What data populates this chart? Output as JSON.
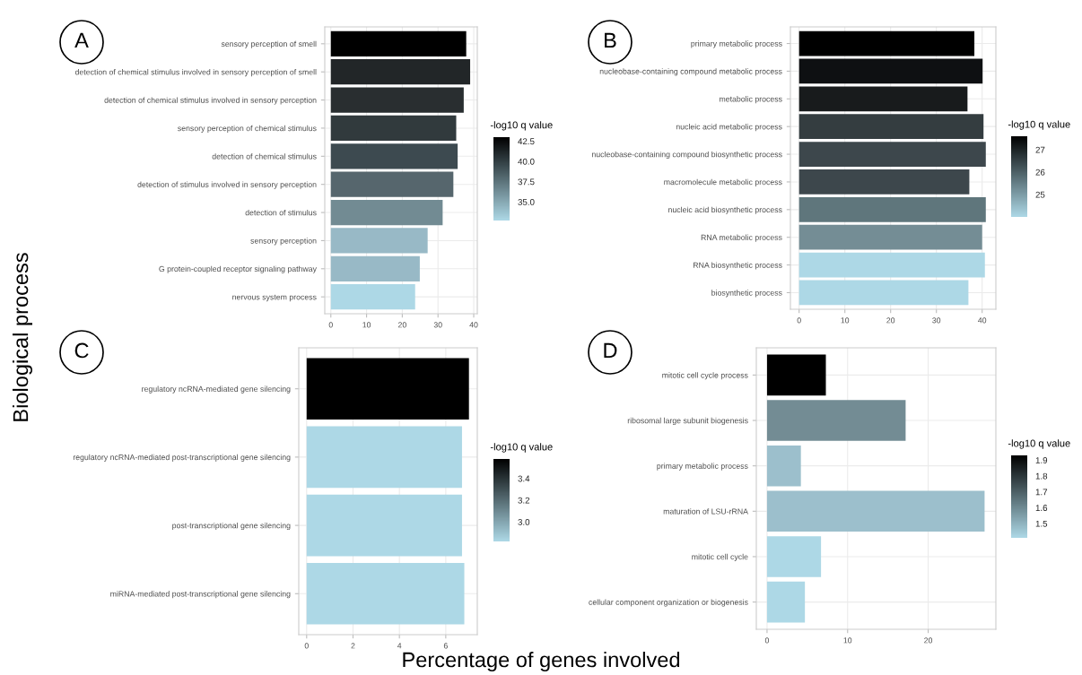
{
  "chart_data": [
    {
      "type": "bar",
      "orientation": "horizontal",
      "title": "A",
      "ylabel": "Biological process",
      "clabel": "-log10 q value",
      "categories": [
        "sensory perception of smell",
        "detection of chemical stimulus involved in sensory perception of smell",
        "detection of chemical stimulus involved in sensory perception",
        "sensory perception of chemical stimulus",
        "detection of chemical stimulus",
        "detection of stimulus involved in sensory perception",
        "detection of stimulus",
        "sensory perception",
        "G protein-coupled receptor signaling pathway",
        "nervous system process"
      ],
      "values": [
        37.9,
        39.0,
        37.2,
        35.1,
        35.5,
        34.3,
        31.3,
        27.1,
        24.9,
        23.6
      ],
      "colors": [
        "#000000",
        "#222628",
        "#292e30",
        "#313a3d",
        "#3d4a50",
        "#56666d",
        "#728b93",
        "#98b9c6",
        "#98b9c6",
        "#add8e6"
      ],
      "xlim": [
        -1.7,
        41.0
      ],
      "xticks": [
        0,
        10,
        20,
        30,
        40
      ],
      "clim": [
        32.7,
        43.0
      ],
      "cticks": [
        {
          "value": 35,
          "label": "35.0"
        },
        37.5,
        {
          "value": 40,
          "label": "40.0"
        },
        42.5
      ],
      "grid": true
    },
    {
      "type": "bar",
      "orientation": "horizontal",
      "title": "B",
      "clabel": "-log10 q value",
      "categories": [
        "primary metabolic process",
        "nucleobase-containing compound metabolic process",
        "metabolic process",
        "nucleic acid metabolic process",
        "nucleobase-containing compound biosynthetic process",
        "macromolecule metabolic process",
        "nucleic acid biosynthetic process",
        "RNA metabolic process",
        "RNA biosynthetic process",
        "biosynthetic process"
      ],
      "values": [
        38.3,
        40.1,
        36.8,
        40.3,
        40.8,
        37.2,
        40.8,
        40.0,
        40.6,
        37.0
      ],
      "colors": [
        "#000000",
        "#0e1012",
        "#181b1c",
        "#343d40",
        "#3d474c",
        "#3d474c",
        "#5f767c",
        "#748d95",
        "#add8e6",
        "#add8e6"
      ],
      "xlim": [
        -1.9,
        43.0
      ],
      "xticks": [
        0,
        10,
        20,
        30,
        40
      ],
      "clim": [
        24.0,
        27.6
      ],
      "cticks": [
        25,
        26,
        27
      ],
      "grid": true
    },
    {
      "type": "bar",
      "orientation": "horizontal",
      "title": "C",
      "xlabel": "Percentage of genes involved",
      "clabel": "-log10 q value",
      "categories": [
        "regulatory ncRNA-mediated gene silencing",
        "regulatory ncRNA-mediated post-transcriptional gene silencing",
        "post-transcriptional gene silencing",
        "miRNA-mediated post-transcriptional gene silencing"
      ],
      "values": [
        7.0,
        6.7,
        6.7,
        6.8
      ],
      "colors": [
        "#000000",
        "#add8e6",
        "#add8e6",
        "#add8e6"
      ],
      "xlim": [
        -0.34,
        7.36
      ],
      "xticks": [
        0,
        2,
        4,
        6
      ],
      "clim": [
        2.82,
        3.58
      ],
      "cticks": [
        {
          "value": 3.0,
          "label": "3.0"
        },
        {
          "value": 3.2,
          "label": "3.2"
        },
        {
          "value": 3.4,
          "label": "3.4"
        }
      ],
      "grid": true
    },
    {
      "type": "bar",
      "orientation": "horizontal",
      "title": "D",
      "clabel": "-log10 q value",
      "categories": [
        "mitotic cell cycle process",
        "ribosomal large subunit biogenesis",
        "primary metabolic process",
        "maturation of LSU-rRNA",
        "mitotic cell cycle",
        "cellular component organization or biogenesis"
      ],
      "values": [
        7.3,
        17.2,
        4.2,
        27.0,
        6.7,
        4.7
      ],
      "colors": [
        "#000000",
        "#738c94",
        "#9cbfcc",
        "#9cbfcc",
        "#add8e6",
        "#add8e6"
      ],
      "xlim": [
        -1.33,
        28.4
      ],
      "xticks": [
        0,
        10,
        20
      ],
      "clim": [
        1.41,
        1.93
      ],
      "cticks": [
        1.5,
        1.6,
        1.7,
        1.8,
        1.9
      ],
      "grid": true
    }
  ]
}
